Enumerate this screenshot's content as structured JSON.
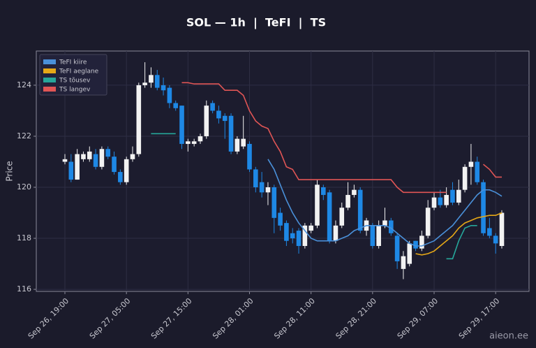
{
  "chart_data": {
    "type": "candlestick",
    "title": "SOL — 1h  |  TeFI  |  TS",
    "ylabel": "Price",
    "watermark": "aieon.ee",
    "categories": [
      "Sep 26, 19:00",
      null,
      null,
      null,
      null,
      null,
      null,
      null,
      null,
      null,
      "Sep 27, 05:00",
      null,
      null,
      null,
      null,
      null,
      null,
      null,
      null,
      null,
      "Sep 27, 15:00",
      null,
      null,
      null,
      null,
      null,
      null,
      null,
      null,
      null,
      "Sep 28, 01:00",
      null,
      null,
      null,
      null,
      null,
      null,
      null,
      null,
      null,
      "Sep 28, 11:00",
      null,
      null,
      null,
      null,
      null,
      null,
      null,
      null,
      null,
      "Sep 28, 21:00",
      null,
      null,
      null,
      null,
      null,
      null,
      null,
      null,
      null,
      "Sep 29, 07:00",
      null,
      null,
      null,
      null,
      null,
      null,
      null,
      null,
      null,
      "Sep 29, 17:00",
      null
    ],
    "open": [
      121.0,
      121.0,
      120.3,
      121.1,
      121.1,
      121.3,
      120.8,
      121.5,
      121.2,
      120.6,
      120.2,
      121.1,
      121.3,
      124.0,
      124.1,
      124.4,
      124.0,
      123.9,
      123.3,
      123.2,
      121.7,
      121.7,
      121.8,
      122.0,
      123.3,
      123.0,
      122.8,
      122.8,
      121.4,
      121.6,
      121.7,
      120.7,
      120.2,
      119.8,
      120.0,
      119.0,
      118.6,
      118.2,
      118.3,
      117.7,
      118.3,
      118.5,
      120.0,
      119.8,
      117.9,
      118.5,
      119.2,
      119.7,
      119.9,
      118.3,
      118.5,
      117.7,
      118.5,
      118.7,
      118.1,
      116.8,
      117.0,
      117.9,
      117.6,
      118.1,
      119.2,
      119.6,
      119.3,
      119.9,
      119.4,
      119.9,
      120.8,
      121.0,
      120.2,
      118.4,
      118.1,
      117.7
    ],
    "high": [
      121.3,
      121.3,
      121.5,
      121.4,
      121.6,
      121.5,
      121.6,
      121.6,
      121.4,
      120.7,
      121.2,
      121.6,
      124.1,
      124.9,
      124.7,
      124.6,
      124.3,
      124.0,
      123.4,
      123.2,
      121.9,
      121.9,
      122.1,
      123.4,
      123.4,
      123.2,
      122.9,
      122.9,
      122.0,
      122.8,
      121.8,
      120.8,
      120.6,
      120.2,
      120.1,
      119.2,
      118.7,
      118.4,
      118.4,
      118.6,
      118.6,
      120.3,
      120.1,
      119.9,
      118.7,
      119.4,
      120.2,
      120.1,
      120.0,
      118.8,
      118.6,
      118.7,
      119.2,
      118.8,
      118.2,
      117.5,
      117.9,
      117.9,
      118.3,
      119.5,
      119.8,
      119.9,
      120.0,
      120.2,
      120.3,
      120.9,
      121.7,
      121.2,
      120.3,
      118.8,
      118.2,
      119.1
    ],
    "low": [
      120.9,
      120.2,
      120.3,
      121.0,
      121.0,
      120.7,
      120.7,
      121.1,
      120.5,
      120.1,
      120.1,
      121.0,
      121.2,
      123.9,
      123.9,
      123.8,
      123.6,
      123.1,
      123.0,
      121.5,
      121.4,
      121.6,
      121.7,
      121.9,
      122.9,
      122.5,
      121.9,
      121.3,
      121.3,
      121.5,
      120.6,
      119.8,
      119.6,
      119.3,
      118.2,
      118.3,
      117.7,
      117.8,
      117.4,
      117.6,
      118.2,
      118.4,
      119.5,
      117.8,
      117.8,
      118.4,
      119.1,
      119.6,
      118.2,
      118.1,
      117.6,
      117.6,
      118.4,
      118.1,
      116.8,
      116.4,
      116.9,
      117.5,
      117.5,
      118.0,
      119.1,
      119.2,
      119.2,
      119.3,
      119.3,
      119.8,
      120.1,
      120.1,
      118.1,
      118.0,
      117.4,
      117.6
    ],
    "close": [
      121.1,
      120.3,
      121.3,
      121.3,
      121.4,
      120.8,
      121.5,
      121.2,
      120.6,
      120.2,
      121.1,
      121.3,
      124.0,
      124.1,
      124.4,
      123.9,
      123.8,
      123.3,
      123.1,
      121.7,
      121.8,
      121.8,
      122.0,
      123.2,
      123.0,
      122.7,
      122.6,
      121.4,
      121.9,
      121.9,
      120.7,
      120.0,
      119.8,
      120.0,
      118.8,
      118.5,
      117.9,
      118.0,
      117.7,
      118.5,
      118.5,
      120.1,
      119.7,
      117.9,
      118.5,
      119.2,
      119.7,
      119.9,
      118.3,
      118.7,
      117.7,
      118.5,
      118.7,
      118.2,
      117.1,
      117.3,
      117.8,
      117.6,
      118.1,
      119.2,
      119.6,
      119.3,
      119.7,
      119.4,
      119.9,
      120.8,
      121.0,
      120.2,
      118.2,
      118.1,
      117.8,
      119.0
    ],
    "up_color": "#f2f2f2",
    "down_color": "#1e88e5",
    "series": [
      {
        "name": "TeFI kiire",
        "color": "#4a90d9",
        "values": [
          null,
          null,
          null,
          null,
          null,
          null,
          null,
          null,
          null,
          null,
          null,
          null,
          null,
          null,
          null,
          null,
          null,
          null,
          null,
          null,
          null,
          null,
          null,
          null,
          null,
          null,
          null,
          null,
          null,
          null,
          null,
          null,
          null,
          121.1,
          120.7,
          120.1,
          119.5,
          119.0,
          118.6,
          118.3,
          118.0,
          117.9,
          117.9,
          117.9,
          117.9,
          118.0,
          118.1,
          118.3,
          118.4,
          118.5,
          118.5,
          118.5,
          118.5,
          118.4,
          118.2,
          118.0,
          117.8,
          117.7,
          117.7,
          117.8,
          117.9,
          118.1,
          118.3,
          118.5,
          118.8,
          119.1,
          119.4,
          119.7,
          119.9,
          119.9,
          119.8,
          119.65
        ]
      },
      {
        "name": "TeFI aeglane",
        "color": "#e6a817",
        "values": [
          null,
          null,
          null,
          null,
          null,
          null,
          null,
          null,
          null,
          null,
          null,
          null,
          null,
          null,
          null,
          null,
          null,
          null,
          null,
          null,
          null,
          null,
          null,
          null,
          null,
          null,
          null,
          null,
          null,
          null,
          null,
          null,
          null,
          null,
          null,
          null,
          null,
          null,
          null,
          null,
          null,
          null,
          null,
          null,
          null,
          null,
          null,
          null,
          null,
          null,
          null,
          null,
          null,
          null,
          null,
          null,
          null,
          117.4,
          117.35,
          117.4,
          117.5,
          117.7,
          117.9,
          118.1,
          118.4,
          118.6,
          118.7,
          118.8,
          118.85,
          118.9,
          118.9,
          119.0
        ]
      },
      {
        "name": "TS tõusev",
        "color": "#26a69a",
        "values": [
          null,
          null,
          null,
          null,
          null,
          null,
          null,
          null,
          null,
          null,
          null,
          null,
          null,
          null,
          122.1,
          122.1,
          122.1,
          122.1,
          122.1,
          null,
          null,
          null,
          null,
          null,
          null,
          null,
          null,
          null,
          null,
          null,
          null,
          null,
          null,
          null,
          null,
          null,
          null,
          null,
          null,
          null,
          null,
          null,
          null,
          null,
          null,
          null,
          null,
          null,
          null,
          null,
          null,
          null,
          null,
          null,
          null,
          null,
          null,
          null,
          null,
          null,
          null,
          null,
          117.2,
          117.2,
          117.9,
          118.4,
          118.5,
          118.5,
          null,
          null,
          null,
          null
        ]
      },
      {
        "name": "TS langev",
        "color": "#e05555",
        "values": [
          null,
          null,
          null,
          null,
          null,
          null,
          null,
          null,
          null,
          null,
          null,
          null,
          null,
          null,
          null,
          null,
          null,
          null,
          null,
          124.1,
          124.1,
          124.05,
          124.05,
          124.05,
          124.05,
          124.05,
          123.8,
          123.8,
          123.8,
          123.6,
          123.0,
          122.6,
          122.4,
          122.3,
          121.8,
          121.4,
          120.8,
          120.7,
          120.3,
          120.3,
          120.3,
          120.3,
          120.3,
          120.3,
          120.3,
          120.3,
          120.3,
          120.3,
          120.3,
          120.3,
          120.3,
          120.3,
          120.3,
          120.3,
          120.0,
          119.8,
          119.8,
          119.8,
          119.8,
          119.8,
          119.8,
          119.8,
          119.8,
          null,
          null,
          null,
          null,
          null,
          120.9,
          120.7,
          120.4,
          120.4
        ]
      }
    ],
    "ylim": [
      115.92,
      125.34
    ],
    "yticks": [
      116,
      118,
      120,
      122,
      124
    ],
    "grid": true,
    "legend": "upper left"
  }
}
